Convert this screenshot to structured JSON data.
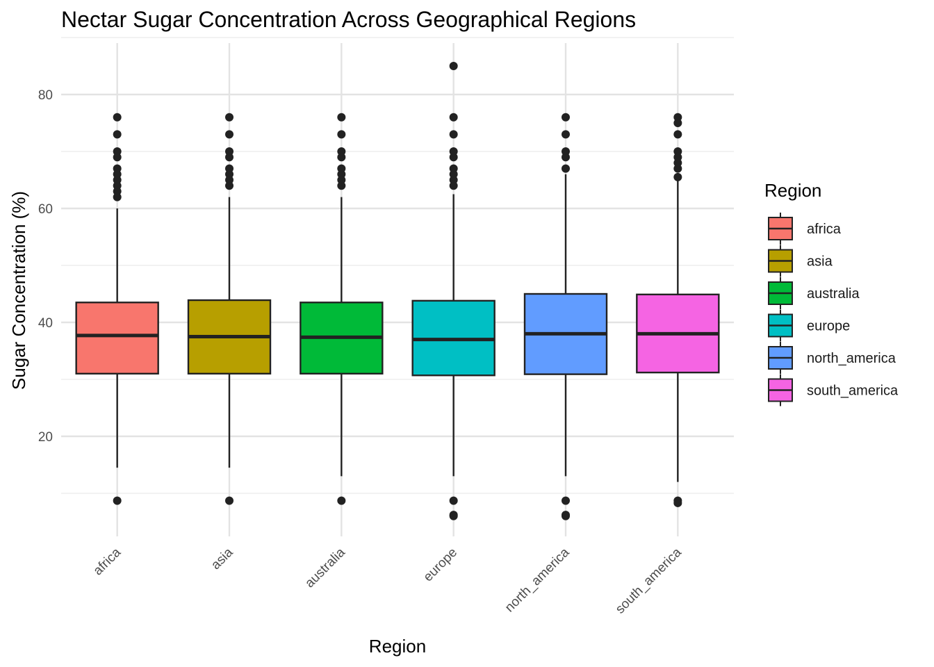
{
  "chart_data": {
    "type": "boxplot",
    "title": "Nectar Sugar Concentration Across Geographical Regions",
    "xlabel": "Region",
    "ylabel": "Sugar Concentration (%)",
    "ylim": [
      4,
      90
    ],
    "yticks": [
      20,
      40,
      60,
      80
    ],
    "grid": true,
    "legend": {
      "title": "Region",
      "position": "right"
    },
    "categories": [
      "africa",
      "asia",
      "australia",
      "europe",
      "north_america",
      "south_america"
    ],
    "colors": [
      "#F8766D",
      "#B79F00",
      "#00BA38",
      "#00BFC4",
      "#619CFF",
      "#F564E3"
    ],
    "boxes": [
      {
        "name": "africa",
        "q1": 31.0,
        "median": 37.7,
        "q3": 43.5,
        "whisker_low": 14.5,
        "whisker_high": 60.0,
        "outliers": [
          76,
          73,
          70,
          69,
          67,
          66,
          65,
          64,
          63,
          62,
          8.7
        ]
      },
      {
        "name": "asia",
        "q1": 31.0,
        "median": 37.5,
        "q3": 43.9,
        "whisker_low": 14.5,
        "whisker_high": 62.0,
        "outliers": [
          76,
          73,
          70,
          69,
          67,
          66,
          65,
          64,
          8.7
        ]
      },
      {
        "name": "australia",
        "q1": 31.0,
        "median": 37.4,
        "q3": 43.5,
        "whisker_low": 13.0,
        "whisker_high": 62.0,
        "outliers": [
          76,
          73,
          70,
          69,
          67,
          66,
          65,
          64,
          8.7
        ]
      },
      {
        "name": "europe",
        "q1": 30.7,
        "median": 37.0,
        "q3": 43.8,
        "whisker_low": 13.0,
        "whisker_high": 62.5,
        "outliers": [
          85,
          76,
          73,
          70,
          69,
          67,
          66,
          65,
          64,
          8.7,
          6.2,
          6.0
        ]
      },
      {
        "name": "north_america",
        "q1": 30.9,
        "median": 38.0,
        "q3": 45.0,
        "whisker_low": 13.0,
        "whisker_high": 66.0,
        "outliers": [
          76,
          73,
          70,
          69,
          67,
          8.7,
          6.2,
          6.0
        ]
      },
      {
        "name": "south_america",
        "q1": 31.2,
        "median": 38.0,
        "q3": 44.9,
        "whisker_low": 12.0,
        "whisker_high": 65.0,
        "outliers": [
          76,
          75,
          73,
          70,
          69,
          68,
          67,
          65.5,
          8.7,
          8.3
        ]
      }
    ]
  }
}
